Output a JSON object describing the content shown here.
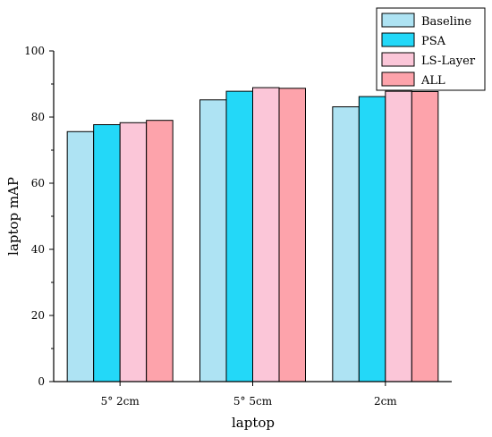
{
  "chart_data": {
    "type": "bar",
    "title": "",
    "xlabel": "laptop",
    "ylabel": "laptop mAP",
    "categories": [
      "5° 2cm",
      "5° 5cm",
      "2cm"
    ],
    "ylim": [
      0,
      100
    ],
    "yticks": [
      0,
      20,
      40,
      60,
      80,
      100
    ],
    "grid": false,
    "legend_position": "top-right",
    "series": [
      {
        "name": "Baseline",
        "color": "#aee3f3",
        "values": [
          75.6,
          85.2,
          83.1
        ]
      },
      {
        "name": "PSA",
        "color": "#23d8f8",
        "values": [
          77.7,
          87.8,
          86.2
        ]
      },
      {
        "name": "LS-Layer",
        "color": "#fbc6d8",
        "values": [
          78.3,
          88.9,
          87.8
        ]
      },
      {
        "name": "ALL",
        "color": "#fda3ab",
        "values": [
          79.0,
          88.7,
          87.7
        ]
      }
    ]
  }
}
